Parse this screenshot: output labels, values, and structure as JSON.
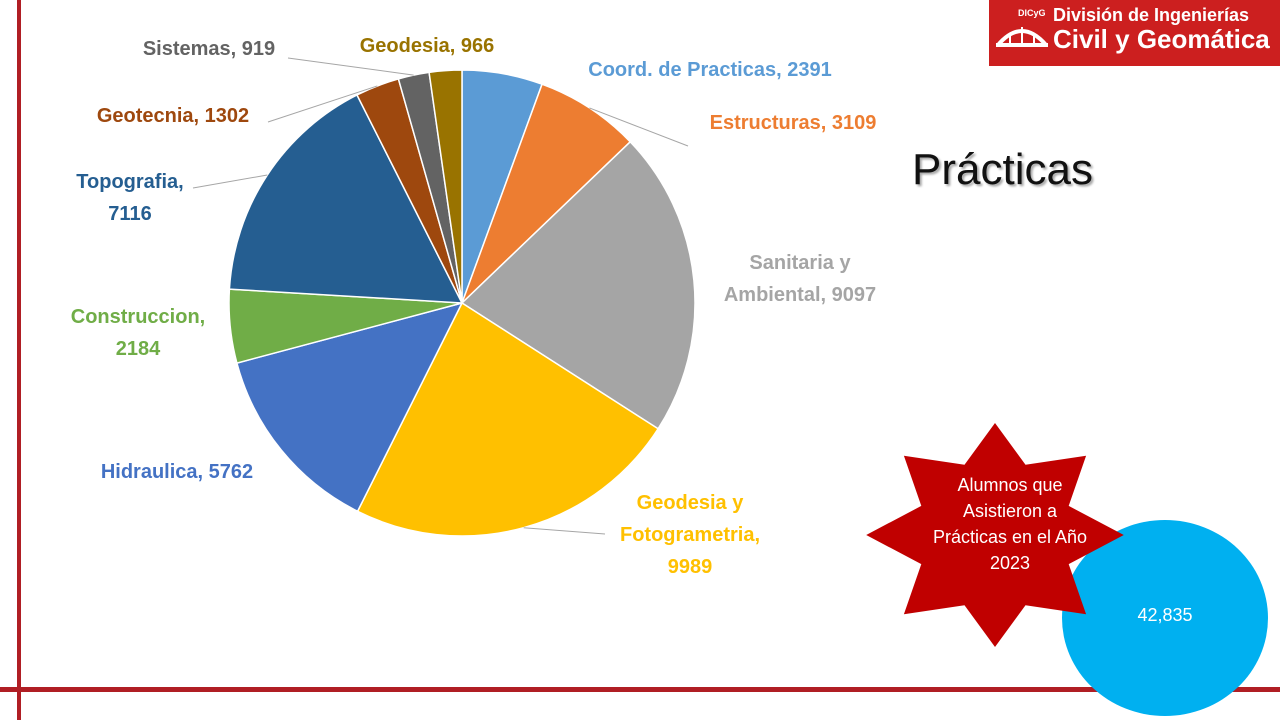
{
  "logo": {
    "line1": "División de Ingenierías",
    "line2": "Civil y Geomática",
    "badge": "DICyG"
  },
  "title": "Prácticas",
  "total": {
    "caption": "Alumnos que Asistieron a Prácticas en el Año 2023",
    "value": "42,835"
  },
  "colors": {
    "frame": "#b01e24",
    "circle": "#00b0f0",
    "star": "#c00000"
  },
  "chart_data": {
    "type": "pie",
    "title": "",
    "slices": [
      {
        "label": "Coord. de Practicas, 2391",
        "name": "Coord. de Practicas",
        "value": 2391,
        "color": "#5b9bd5"
      },
      {
        "label": "Estructuras, 3109",
        "name": "Estructuras",
        "value": 3109,
        "color": "#ed7d31"
      },
      {
        "label": "Sanitaria y Ambiental, 9097",
        "name": "Sanitaria y Ambiental",
        "value": 9097,
        "color": "#a5a5a5"
      },
      {
        "label": "Geodesia y Fotogrametria, 9989",
        "name": "Geodesia y Fotogrametria",
        "value": 9989,
        "color": "#ffc000"
      },
      {
        "label": "Hidraulica, 5762",
        "name": "Hidraulica",
        "value": 5762,
        "color": "#4472c4"
      },
      {
        "label": "Construccion, 2184",
        "name": "Construccion",
        "value": 2184,
        "color": "#70ad47"
      },
      {
        "label": "Topografia, 7116",
        "name": "Topografia",
        "value": 7116,
        "color": "#255e91"
      },
      {
        "label": "Geotecnia, 1302",
        "name": "Geotecnia",
        "value": 1302,
        "color": "#9e480e"
      },
      {
        "label": "Sistemas, 919",
        "name": "Sistemas",
        "value": 919,
        "color": "#636363"
      },
      {
        "label": "Geodesia, 966",
        "name": "Geodesia",
        "value": 966,
        "color": "#997300"
      }
    ]
  }
}
